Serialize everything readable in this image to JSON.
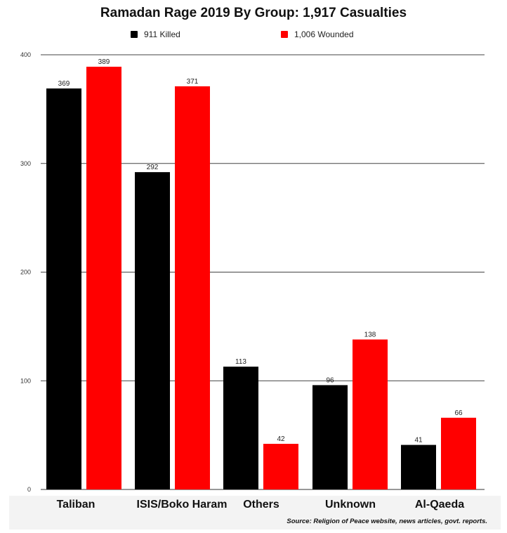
{
  "chart_data": {
    "type": "bar",
    "title": "Ramadan Rage 2019 By Group: 1,917 Casualties",
    "categories": [
      "Taliban",
      "ISIS/Boko Haram",
      "Others",
      "Unknown",
      "Al-Qaeda"
    ],
    "series": [
      {
        "name": "911 Killed",
        "color": "#000000",
        "values": [
          369,
          292,
          113,
          96,
          41
        ]
      },
      {
        "name": "1,006 Wounded",
        "color": "#ff0000",
        "values": [
          389,
          371,
          42,
          138,
          66
        ]
      }
    ],
    "yticks": [
      0,
      100,
      200,
      300,
      400
    ],
    "ylim": [
      0,
      400
    ],
    "grid": true,
    "legend_position": "top",
    "xlabel": "",
    "ylabel": ""
  },
  "source": "Source: Religion of Peace website, news articles, govt. reports."
}
